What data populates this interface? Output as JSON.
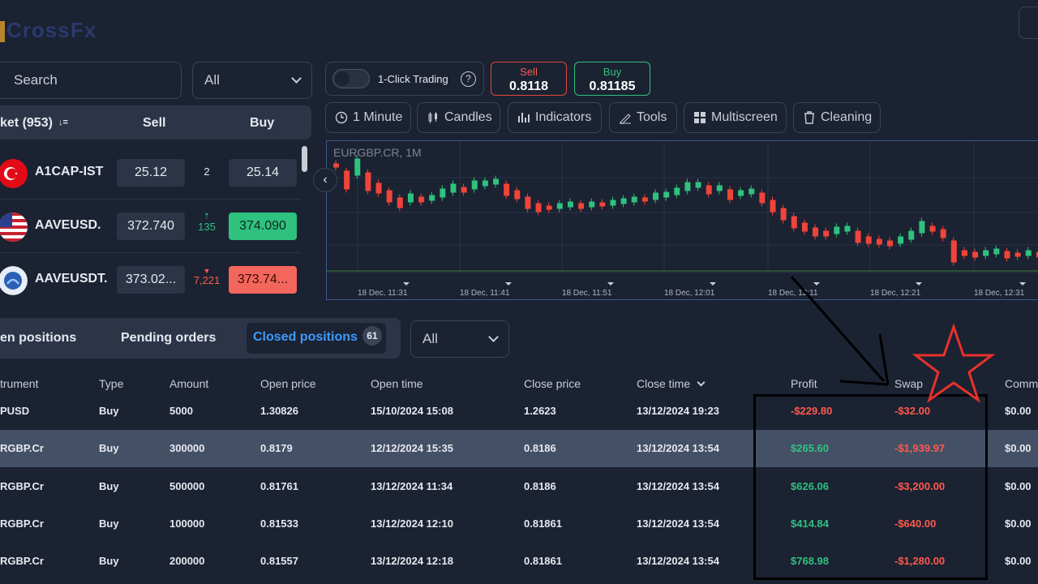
{
  "app": {
    "logo_text": "CrossFx"
  },
  "search": {
    "label": "Search"
  },
  "market_filter": {
    "value": "All"
  },
  "market_header": {
    "market": "ket (953)",
    "sort_icon": "↓=",
    "sell": "Sell",
    "buy": "Buy"
  },
  "instruments": [
    {
      "name": "A1CAP-IST",
      "sell": "25.12",
      "spread": "2",
      "spread_dir": "",
      "buy": "25.14",
      "buy_state": "neutral",
      "sell_state": "neutral",
      "flag": "turkey-flag-icon"
    },
    {
      "name": "AAVEUSD.",
      "sell": "372.740",
      "spread": "135",
      "spread_dir": "up",
      "buy": "374.090",
      "buy_state": "green",
      "sell_state": "neutral",
      "flag": "us-flag-icon"
    },
    {
      "name": "AAVEUSDT.",
      "sell": "373.02...",
      "spread": "7,221",
      "spread_dir": "down",
      "buy": "373.74...",
      "buy_state": "red",
      "sell_state": "neutral",
      "flag": "aave-coin-icon"
    }
  ],
  "toolbar": {
    "one_click_label": "1-Click Trading",
    "one_click_enabled": false,
    "sell_label": "Sell",
    "sell_price": "0.8118",
    "buy_label": "Buy",
    "buy_price": "0.81185",
    "timeframe": "1 Minute",
    "chart_type": "Candles",
    "indicators": "Indicators",
    "tools": "Tools",
    "multiscreen": "Multiscreen",
    "cleaning": "Cleaning"
  },
  "chart": {
    "title": "EURGBP.CR, 1M",
    "time_labels": [
      "18 Dec, 11:31",
      "18 Dec, 11:41",
      "18 Dec, 11:51",
      "18 Dec, 12:01",
      "18 Dec, 12:11",
      "18 Dec, 12:21",
      "18 Dec, 12:31"
    ],
    "colors": {
      "up": "#2ec27e",
      "down": "#f0443a"
    }
  },
  "positions_tabs": {
    "open": "en positions",
    "pending": "Pending orders",
    "closed": "Closed positions",
    "closed_count": "61",
    "filter": "All"
  },
  "columns": {
    "instrument": "trument",
    "type": "Type",
    "amount": "Amount",
    "open_price": "Open price",
    "open_time": "Open time",
    "close_price": "Close price",
    "close_time": "Close time",
    "profit": "Profit",
    "swap": "Swap",
    "commission": "Comm"
  },
  "rows": [
    {
      "instrument": "PUSD",
      "type": "Buy",
      "amount": "5000",
      "open_price": "1.30826",
      "open_time": "15/10/2024 15:08",
      "close_price": "1.2623",
      "close_time": "13/12/2024 19:23",
      "profit": "-$229.80",
      "profit_sign": "neg",
      "swap": "-$32.00",
      "commission": "$0.00"
    },
    {
      "instrument": "RGBP.Cr",
      "type": "Buy",
      "amount": "300000",
      "open_price": "0.8179",
      "open_time": "12/12/2024 15:35",
      "close_price": "0.8186",
      "close_time": "13/12/2024 13:54",
      "profit": "$265.60",
      "profit_sign": "pos",
      "swap": "-$1,939.97",
      "commission": "$0.00"
    },
    {
      "instrument": "RGBP.Cr",
      "type": "Buy",
      "amount": "500000",
      "open_price": "0.81761",
      "open_time": "13/12/2024 11:34",
      "close_price": "0.8186",
      "close_time": "13/12/2024 13:54",
      "profit": "$626.06",
      "profit_sign": "pos",
      "swap": "-$3,200.00",
      "commission": "$0.00"
    },
    {
      "instrument": "RGBP.Cr",
      "type": "Buy",
      "amount": "100000",
      "open_price": "0.81533",
      "open_time": "13/12/2024 12:10",
      "close_price": "0.81861",
      "close_time": "13/12/2024 13:54",
      "profit": "$414.84",
      "profit_sign": "pos",
      "swap": "-$640.00",
      "commission": "$0.00"
    },
    {
      "instrument": "RGBP.Cr",
      "type": "Buy",
      "amount": "200000",
      "open_price": "0.81557",
      "open_time": "13/12/2024 12:18",
      "close_price": "0.81861",
      "close_time": "13/12/2024 13:54",
      "profit": "$768.98",
      "profit_sign": "pos",
      "swap": "-$1,280.00",
      "commission": "$0.00"
    }
  ]
}
